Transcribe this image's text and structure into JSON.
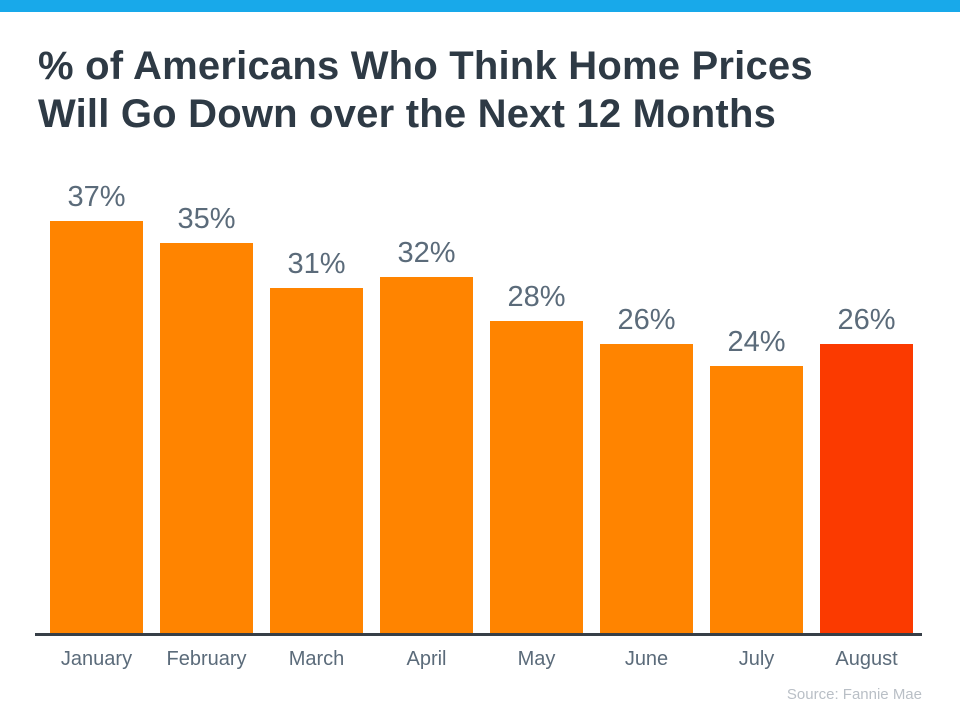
{
  "page": {
    "source_note": "Source: Fannie Mae"
  },
  "chart_data": {
    "type": "bar",
    "title": "% of Americans Who Think Home Prices Will Go Down over the Next 12 Months",
    "title_lines": [
      "% of Americans Who Think Home Prices",
      "Will Go Down over the Next 12 Months"
    ],
    "categories": [
      "January",
      "February",
      "March",
      "April",
      "May",
      "June",
      "July",
      "August"
    ],
    "values": [
      37,
      35,
      31,
      32,
      28,
      26,
      24,
      26
    ],
    "value_suffix": "%",
    "data_labels": [
      "37%",
      "35%",
      "31%",
      "32%",
      "28%",
      "26%",
      "24%",
      "26%"
    ],
    "highlight_index": 7,
    "xlabel": "",
    "ylabel": "",
    "y_axis_visible": false,
    "grid": false,
    "legend": false,
    "colors": {
      "bar": "#ff8400",
      "highlight": "#fb3a00",
      "title": "#2e3a45",
      "value_label": "#5b6b7a",
      "axis_label": "#5b6b7a",
      "axis_line": "#373f47",
      "source": "#b9bfc6",
      "top_bar": "#18a9ea"
    }
  }
}
